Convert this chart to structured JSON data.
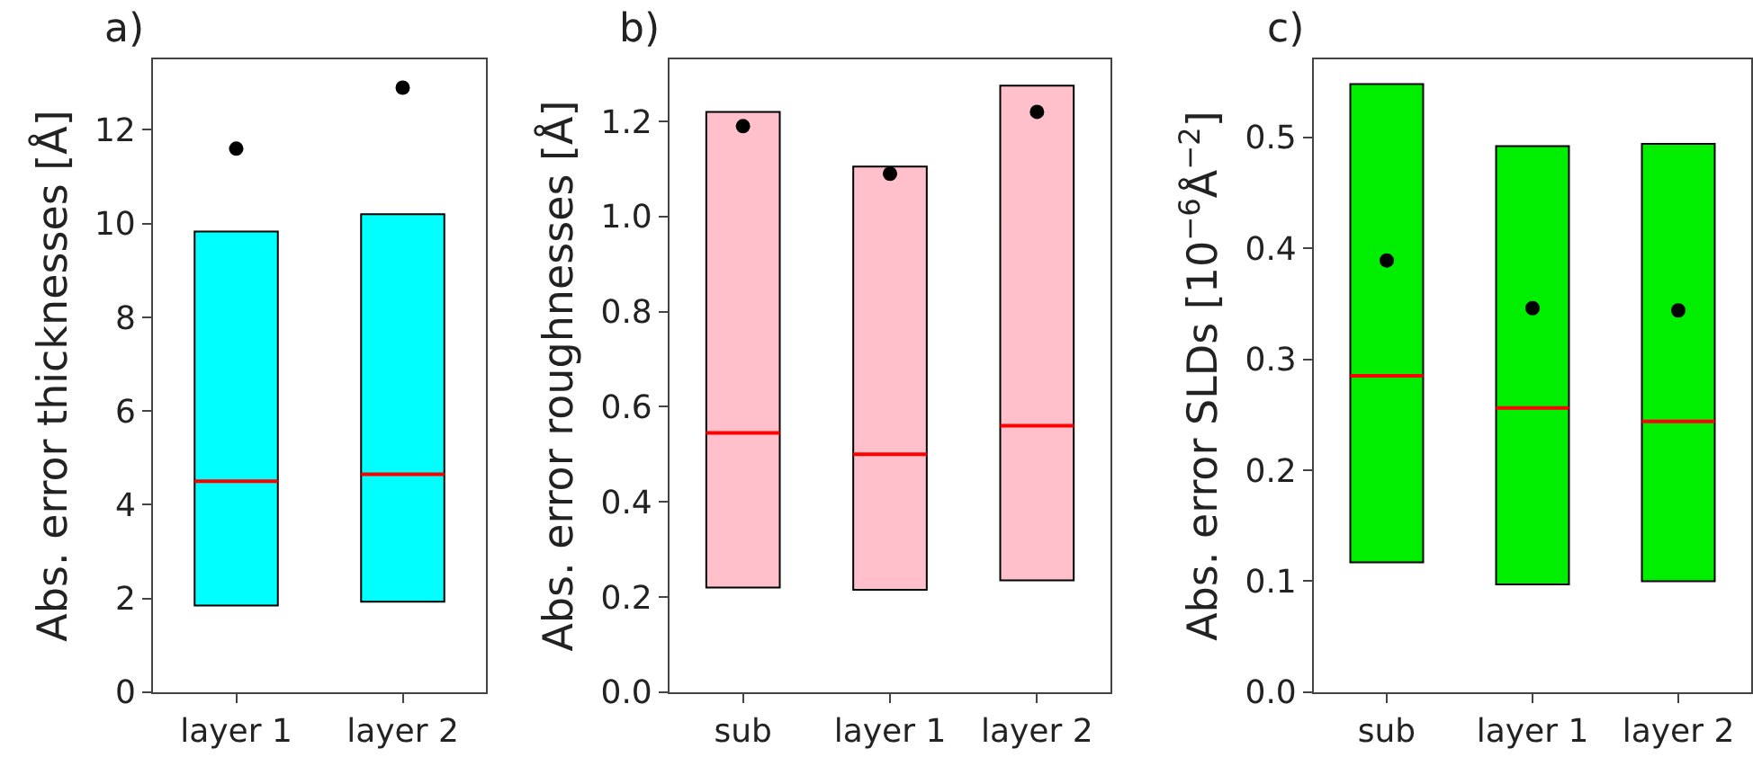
{
  "chart_data": [
    {
      "type": "box",
      "title": "a)",
      "ylabel": "Abs. error thicknesses [Å]",
      "categories": [
        "layer 1",
        "layer 2"
      ],
      "series": [
        {
          "color": "#00ffff",
          "boxes": [
            {
              "low": 1.85,
              "q1": 1.85,
              "median": 4.5,
              "q3": 9.83,
              "high": 9.83,
              "mean": 11.6
            },
            {
              "low": 1.93,
              "q1": 1.93,
              "median": 4.65,
              "q3": 10.2,
              "high": 10.2,
              "mean": 12.9
            }
          ]
        }
      ],
      "ylim": [
        0,
        13.5
      ],
      "yticks": [
        0,
        2,
        4,
        6,
        8,
        10,
        12
      ]
    },
    {
      "type": "box",
      "title": "b)",
      "ylabel": "Abs. error roughnesses [Å]",
      "categories": [
        "sub",
        "layer 1",
        "layer 2"
      ],
      "series": [
        {
          "color": "#ffc0cb",
          "boxes": [
            {
              "low": 0.22,
              "q1": 0.22,
              "median": 0.545,
              "q3": 1.22,
              "high": 1.22,
              "mean": 1.19
            },
            {
              "low": 0.215,
              "q1": 0.215,
              "median": 0.5,
              "q3": 1.105,
              "high": 1.105,
              "mean": 1.09
            },
            {
              "low": 0.235,
              "q1": 0.235,
              "median": 0.56,
              "q3": 1.275,
              "high": 1.275,
              "mean": 1.22
            }
          ]
        }
      ],
      "ylim": [
        0,
        1.33
      ],
      "yticks": [
        {
          "value": 0,
          "label": "0.0"
        },
        {
          "value": 0.2,
          "label": "0.2"
        },
        {
          "value": 0.4,
          "label": "0.4"
        },
        {
          "value": 0.6,
          "label": "0.6"
        },
        {
          "value": 0.8,
          "label": "0.8"
        },
        {
          "value": 1,
          "label": "1.0"
        },
        {
          "value": 1.2,
          "label": "1.2"
        }
      ]
    },
    {
      "type": "box",
      "title": "c)",
      "ylabel": "Abs. error SLDs [10$^{−6}$Å$^{−2}$]",
      "categories": [
        "sub",
        "layer 1",
        "layer 2"
      ],
      "series": [
        {
          "color": "#00ee00",
          "boxes": [
            {
              "low": 0.117,
              "q1": 0.117,
              "median": 0.285,
              "q3": 0.548,
              "high": 0.548,
              "mean": 0.389
            },
            {
              "low": 0.097,
              "q1": 0.097,
              "median": 0.256,
              "q3": 0.492,
              "high": 0.492,
              "mean": 0.346
            },
            {
              "low": 0.1,
              "q1": 0.1,
              "median": 0.244,
              "q3": 0.494,
              "high": 0.494,
              "mean": 0.344
            }
          ]
        }
      ],
      "ylim": [
        0,
        0.57
      ],
      "yticks": [
        {
          "value": 0,
          "label": "0.0"
        },
        {
          "value": 0.1,
          "label": "0.1"
        },
        {
          "value": 0.2,
          "label": "0.2"
        },
        {
          "value": 0.3,
          "label": "0.3"
        },
        {
          "value": 0.4,
          "label": "0.4"
        },
        {
          "value": 0.5,
          "label": "0.5"
        }
      ]
    }
  ]
}
